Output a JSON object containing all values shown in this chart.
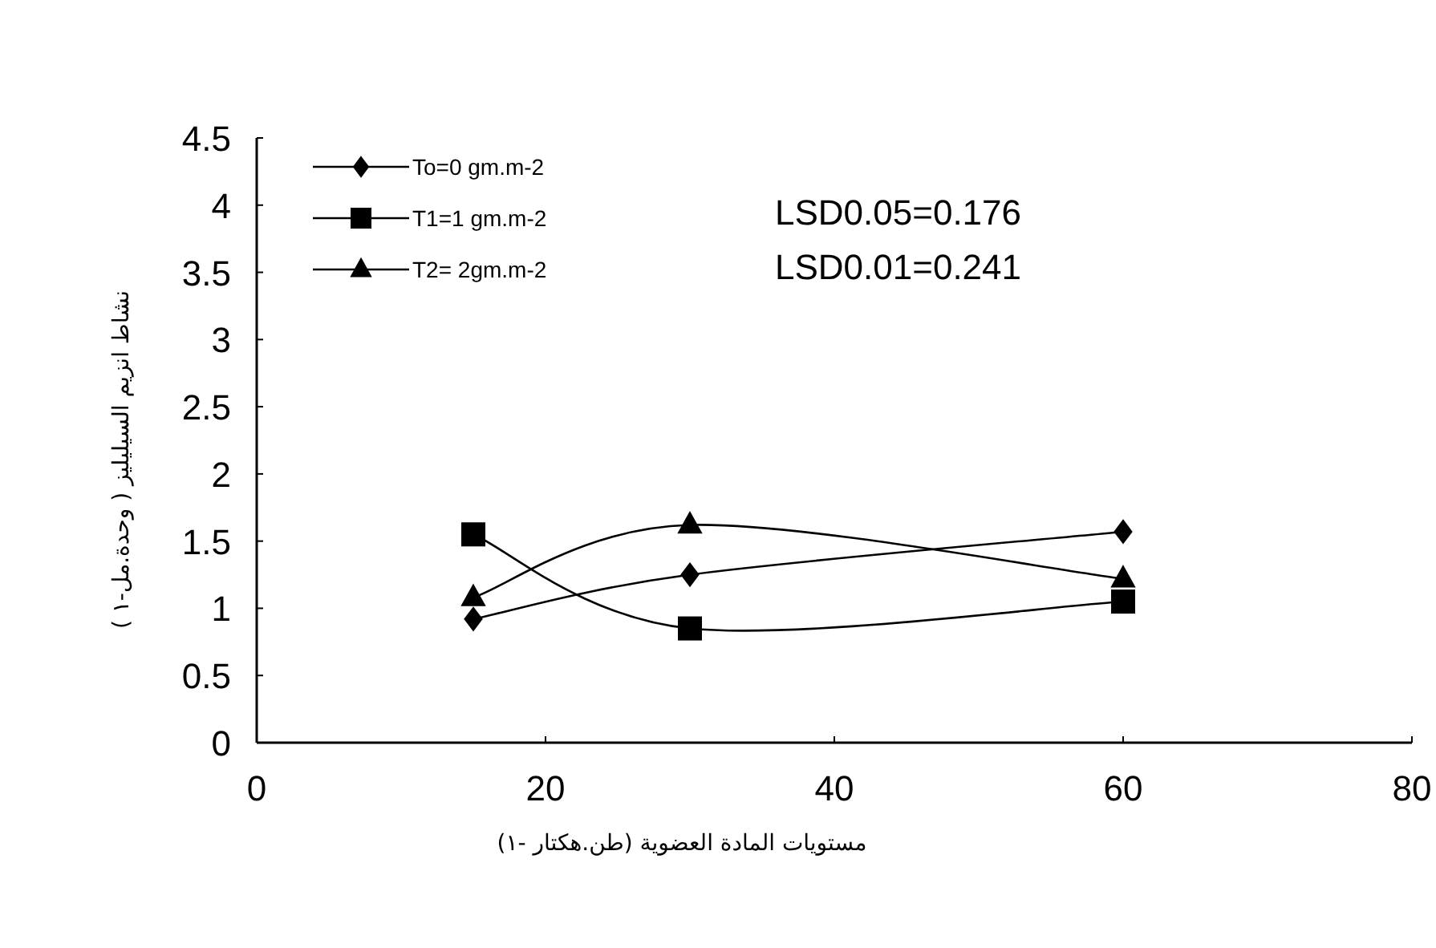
{
  "chart_data": {
    "type": "line",
    "xlabel": "مستويات المادة العضوية (طن.هكتار -١)",
    "ylabel": "نشاط انزيم السيليليز ( وحدة.مل-١ )",
    "x": [
      15,
      30,
      60
    ],
    "series": [
      {
        "name": "To=0 gm.m-2",
        "color": "#000000",
        "marker": "diamond",
        "values": [
          0.92,
          1.25,
          1.57
        ]
      },
      {
        "name": "T1=1 gm.m-2",
        "color": "#000000",
        "marker": "square",
        "values": [
          1.55,
          0.85,
          1.05
        ]
      },
      {
        "name": "T2= 2gm.m-2",
        "color": "#000000",
        "marker": "triangle",
        "values": [
          1.08,
          1.62,
          1.22
        ]
      }
    ],
    "xlim": [
      0,
      80
    ],
    "xticks": [
      0,
      20,
      40,
      60,
      80
    ],
    "ylim": [
      0,
      4.5
    ],
    "yticks": [
      0,
      0.5,
      1,
      1.5,
      2,
      2.5,
      3,
      3.5,
      4,
      4.5
    ],
    "legend": "top left",
    "grid": false,
    "line_style": "solid",
    "annotations": [
      "LSD0.05=0.176",
      "LSD0.01=0.241"
    ]
  }
}
